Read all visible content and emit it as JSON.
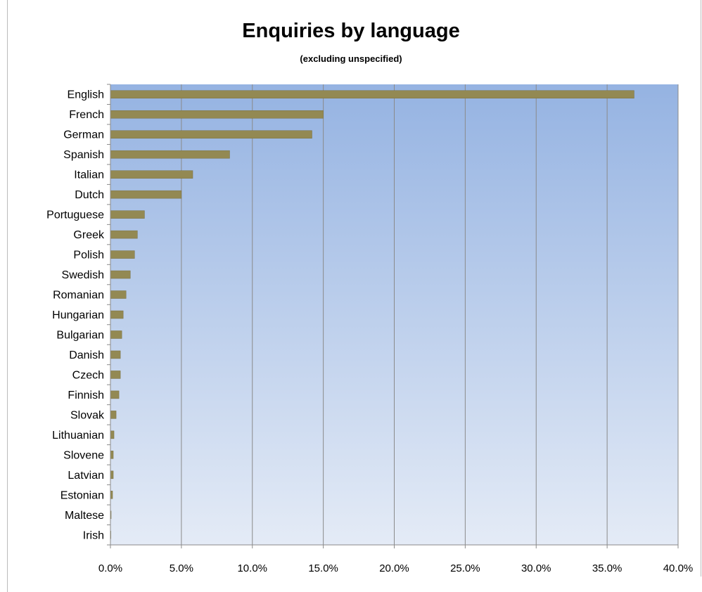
{
  "chart_data": {
    "type": "bar",
    "orientation": "horizontal",
    "title": "Enquiries by language",
    "subtitle": "(excluding unspecified)",
    "categories": [
      "English",
      "French",
      "German",
      "Spanish",
      "Italian",
      "Dutch",
      "Portuguese",
      "Greek",
      "Polish",
      "Swedish",
      "Romanian",
      "Hungarian",
      "Bulgarian",
      "Danish",
      "Czech",
      "Finnish",
      "Slovak",
      "Lithuanian",
      "Slovene",
      "Latvian",
      "Estonian",
      "Maltese",
      "Irish"
    ],
    "values": [
      36.9,
      15.0,
      14.2,
      8.4,
      5.8,
      5.0,
      2.4,
      1.9,
      1.7,
      1.4,
      1.1,
      0.9,
      0.8,
      0.7,
      0.7,
      0.6,
      0.4,
      0.25,
      0.2,
      0.2,
      0.15,
      0.05,
      0.02
    ],
    "xlim": [
      0,
      40
    ],
    "xticks": [
      "0.0%",
      "5.0%",
      "10.0%",
      "15.0%",
      "20.0%",
      "25.0%",
      "30.0%",
      "35.0%",
      "40.0%"
    ],
    "xtick_values": [
      0,
      5,
      10,
      15,
      20,
      25,
      30,
      35,
      40
    ],
    "grid": true,
    "legend": "none",
    "colors": {
      "bar": "#938953",
      "bar_edge": "#7a7040",
      "plot_top": "#95b3e2",
      "plot_bottom": "#e4ebf6",
      "gridline": "#8a8a8a"
    }
  }
}
